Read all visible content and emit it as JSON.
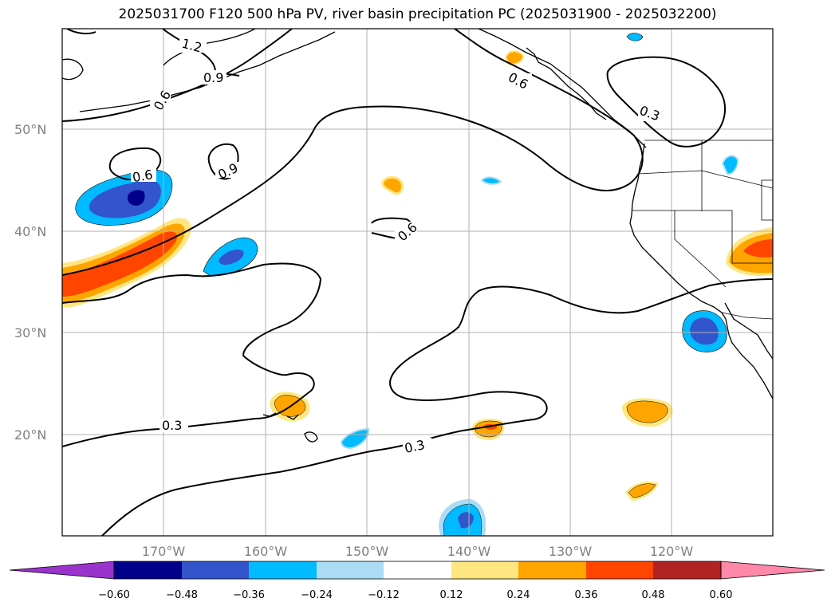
{
  "title": "2025031700 F120 500 hPa PV, river basin precipitation PC (2025031900 - 2025032200)",
  "map": {
    "lat_labels": [
      "50°N",
      "40°N",
      "30°N",
      "20°N"
    ],
    "lon_labels": [
      "170°W",
      "160°W",
      "150°W",
      "140°W",
      "130°W",
      "120°W"
    ],
    "contour_labels": [
      "1.2",
      "0.9",
      "0.6",
      "0.6",
      "0.9",
      "0.6",
      "0.6",
      "0.3",
      "0.3",
      "0.3"
    ]
  },
  "colorbar": {
    "colors": [
      "#9933cc",
      "#00008b",
      "#3355cc",
      "#00bbff",
      "#aaddf5",
      "#ffffff",
      "#ffe680",
      "#ffa500",
      "#ff4500",
      "#b22222",
      "#ff88aa"
    ],
    "ticks": [
      "−0.60",
      "−0.48",
      "−0.36",
      "−0.24",
      "−0.12",
      "0.12",
      "0.24",
      "0.36",
      "0.48",
      "0.60"
    ]
  }
}
